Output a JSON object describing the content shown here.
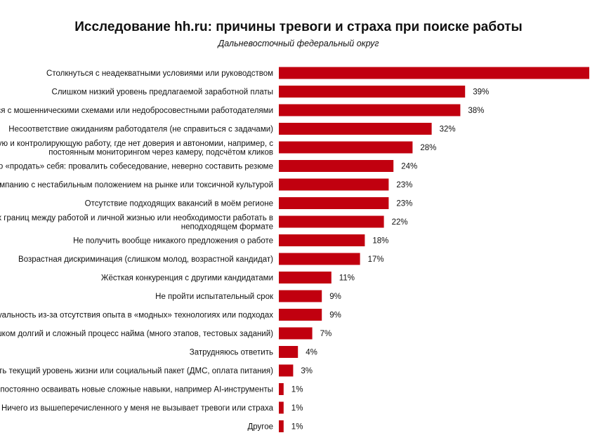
{
  "chart_data": {
    "type": "bar",
    "orientation": "horizontal",
    "title": "Исследование hh.ru: причины тревоги и страха при поиске работы",
    "subtitle": "Дальневосточный федеральный округ",
    "bar_color": "#c1000f",
    "categories": [
      [
        "Столкнуться с неадекватными условиями или руководством"
      ],
      [
        "Слишком низкий уровень предлагаемой заработной платы"
      ],
      [
        "Столкнуться с мошенническими схемами или недобросовестными работодателями"
      ],
      [
        "Несоответствие ожиданиям работодателя (не справиться с задачами)"
      ],
      [
        "Попасть на жёсткую и контролирующую работу, где нет доверия и автономии, например, с",
        "постоянным мониторингом через камеру, подсчётом кликов"
      ],
      [
        "Не суметь правильно «продать» себя: провалить собеседование, неверно составить резюме"
      ],
      [
        "Попасть в компанию с нестабильным положением на рынке или токсичной культурой"
      ],
      [
        "Отсутствие подходящих вакансий в моём регионе"
      ],
      [
        "Отсутствие чётких границ между работой и личной жизнью или необходимости работать в",
        "неподходящем формате"
      ],
      [
        "Не получить вообще никакого предложения о работе"
      ],
      [
        "Возрастная дискриминация (слишком молод, возрастной кандидат)"
      ],
      [
        "Жёсткая конкуренция с другими кандидатами"
      ],
      [
        "Не пройти испытательный срок"
      ],
      [
        "Потерять актуальность из-за отсутствия опыта в «модных» технологиях или подходах"
      ],
      [
        "Слишком долгий и сложный процесс найма (много этапов, тестовых заданий)"
      ],
      [
        "Затрудняюсь ответить"
      ],
      [
        "Потерять текущий уровень жизни или социальный пакет (ДМС, оплата питания)"
      ],
      [
        "Необходимость постоянно осваивать новые сложные навыки, например AI-инструменты"
      ],
      [
        "Ничего из вышеперечисленного у меня не вызывает тревоги или страха"
      ],
      [
        "Другое"
      ]
    ],
    "values": [
      65,
      39,
      38,
      32,
      28,
      24,
      23,
      23,
      22,
      18,
      17,
      11,
      9,
      9,
      7,
      4,
      3,
      1,
      1,
      1
    ],
    "value_labels": [
      "",
      "39%",
      "38%",
      "32%",
      "28%",
      "24%",
      "23%",
      "23%",
      "22%",
      "18%",
      "17%",
      "11%",
      "9%",
      "9%",
      "7%",
      "4%",
      "3%",
      "1%",
      "1%",
      "1%"
    ]
  }
}
